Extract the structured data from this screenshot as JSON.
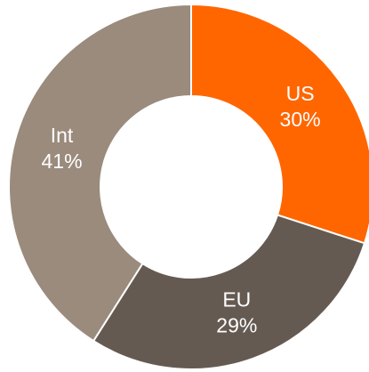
{
  "chart_data": {
    "type": "pie",
    "donut": true,
    "categories": [
      "US",
      "EU",
      "Int"
    ],
    "values": [
      30,
      29,
      41
    ],
    "value_labels": [
      "30%",
      "29%",
      "41%"
    ],
    "colors": [
      "#ff6600",
      "#655a52",
      "#9b8b7d"
    ]
  }
}
